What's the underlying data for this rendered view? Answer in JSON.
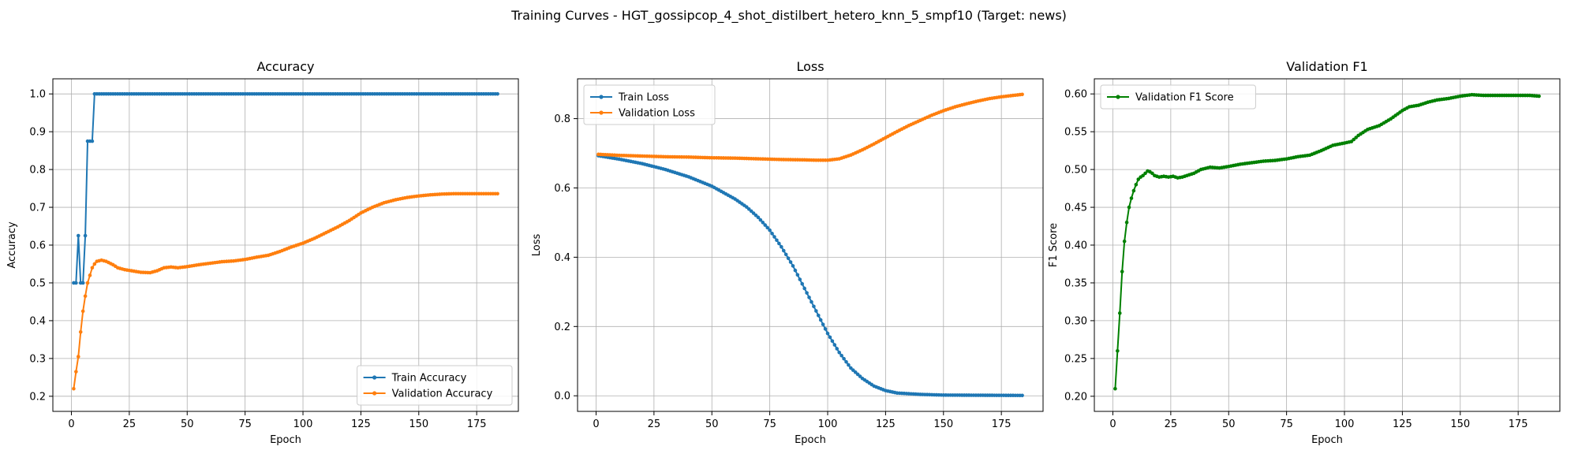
{
  "figure": {
    "suptitle": "Training Curves - HGT_gossipcop_4_shot_distilbert_hetero_knn_5_smpf10 (Target: news)"
  },
  "colors": {
    "blue": "#1f77b4",
    "orange": "#ff7f0e",
    "green": "#008000",
    "grid": "#b0b0b0"
  },
  "chart_data": [
    {
      "type": "line",
      "title": "Accuracy",
      "xlabel": "Epoch",
      "ylabel": "Accuracy",
      "xlim": [
        -8,
        193
      ],
      "ylim": [
        0.16,
        1.04
      ],
      "xticks": [
        0,
        25,
        50,
        75,
        100,
        125,
        150,
        175
      ],
      "yticks": [
        0.2,
        0.3,
        0.4,
        0.5,
        0.6,
        0.7,
        0.8,
        0.9,
        1.0
      ],
      "ytick_labels": [
        "0.2",
        "0.3",
        "0.4",
        "0.5",
        "0.6",
        "0.7",
        "0.8",
        "0.9",
        "1.0"
      ],
      "grid": true,
      "legend_position": "lower-right",
      "epochs": 184,
      "series": [
        {
          "name": "Train Accuracy",
          "color": "blue",
          "points": [
            [
              1,
              0.5
            ],
            [
              2,
              0.5
            ],
            [
              3,
              0.625
            ],
            [
              4,
              0.5
            ],
            [
              5,
              0.5
            ],
            [
              6,
              0.625
            ],
            [
              7,
              0.875
            ],
            [
              8,
              0.875
            ],
            [
              9,
              0.875
            ],
            [
              10,
              1.0
            ],
            [
              184,
              1.0
            ]
          ]
        },
        {
          "name": "Validation Accuracy",
          "color": "orange",
          "points": [
            [
              1,
              0.22
            ],
            [
              2,
              0.265
            ],
            [
              3,
              0.305
            ],
            [
              4,
              0.37
            ],
            [
              5,
              0.425
            ],
            [
              6,
              0.465
            ],
            [
              7,
              0.5
            ],
            [
              8,
              0.52
            ],
            [
              9,
              0.54
            ],
            [
              10,
              0.55
            ],
            [
              11,
              0.557
            ],
            [
              13,
              0.56
            ],
            [
              15,
              0.557
            ],
            [
              18,
              0.548
            ],
            [
              20,
              0.54
            ],
            [
              23,
              0.535
            ],
            [
              26,
              0.532
            ],
            [
              30,
              0.528
            ],
            [
              34,
              0.527
            ],
            [
              37,
              0.532
            ],
            [
              40,
              0.54
            ],
            [
              43,
              0.542
            ],
            [
              46,
              0.54
            ],
            [
              50,
              0.543
            ],
            [
              55,
              0.548
            ],
            [
              60,
              0.552
            ],
            [
              65,
              0.556
            ],
            [
              70,
              0.558
            ],
            [
              75,
              0.562
            ],
            [
              80,
              0.568
            ],
            [
              85,
              0.573
            ],
            [
              90,
              0.583
            ],
            [
              95,
              0.595
            ],
            [
              100,
              0.605
            ],
            [
              105,
              0.618
            ],
            [
              110,
              0.633
            ],
            [
              115,
              0.648
            ],
            [
              120,
              0.665
            ],
            [
              125,
              0.685
            ],
            [
              130,
              0.7
            ],
            [
              135,
              0.712
            ],
            [
              140,
              0.72
            ],
            [
              145,
              0.726
            ],
            [
              150,
              0.73
            ],
            [
              155,
              0.733
            ],
            [
              160,
              0.735
            ],
            [
              165,
              0.736
            ],
            [
              170,
              0.736
            ],
            [
              175,
              0.736
            ],
            [
              184,
              0.736
            ]
          ]
        }
      ]
    },
    {
      "type": "line",
      "title": "Loss",
      "xlabel": "Epoch",
      "ylabel": "Loss",
      "xlim": [
        -8,
        193
      ],
      "ylim": [
        -0.045,
        0.915
      ],
      "xticks": [
        0,
        25,
        50,
        75,
        100,
        125,
        150,
        175
      ],
      "yticks": [
        0.0,
        0.2,
        0.4,
        0.6,
        0.8
      ],
      "ytick_labels": [
        "0.0",
        "0.2",
        "0.4",
        "0.6",
        "0.8"
      ],
      "grid": true,
      "legend_position": "upper-left",
      "epochs": 184,
      "series": [
        {
          "name": "Train Loss",
          "color": "blue",
          "points": [
            [
              1,
              0.693
            ],
            [
              10,
              0.683
            ],
            [
              20,
              0.67
            ],
            [
              30,
              0.653
            ],
            [
              40,
              0.632
            ],
            [
              50,
              0.605
            ],
            [
              60,
              0.568
            ],
            [
              65,
              0.545
            ],
            [
              70,
              0.515
            ],
            [
              75,
              0.478
            ],
            [
              80,
              0.43
            ],
            [
              85,
              0.375
            ],
            [
              90,
              0.31
            ],
            [
              95,
              0.245
            ],
            [
              100,
              0.18
            ],
            [
              105,
              0.125
            ],
            [
              110,
              0.08
            ],
            [
              115,
              0.05
            ],
            [
              120,
              0.028
            ],
            [
              125,
              0.015
            ],
            [
              130,
              0.008
            ],
            [
              140,
              0.004
            ],
            [
              150,
              0.002
            ],
            [
              184,
              0.001
            ]
          ]
        },
        {
          "name": "Validation Loss",
          "color": "orange",
          "points": [
            [
              1,
              0.697
            ],
            [
              10,
              0.694
            ],
            [
              20,
              0.692
            ],
            [
              30,
              0.69
            ],
            [
              40,
              0.689
            ],
            [
              50,
              0.687
            ],
            [
              60,
              0.686
            ],
            [
              70,
              0.684
            ],
            [
              80,
              0.682
            ],
            [
              90,
              0.681
            ],
            [
              95,
              0.68
            ],
            [
              100,
              0.68
            ],
            [
              105,
              0.684
            ],
            [
              110,
              0.695
            ],
            [
              115,
              0.71
            ],
            [
              120,
              0.727
            ],
            [
              125,
              0.745
            ],
            [
              130,
              0.763
            ],
            [
              135,
              0.78
            ],
            [
              140,
              0.795
            ],
            [
              145,
              0.81
            ],
            [
              150,
              0.823
            ],
            [
              155,
              0.834
            ],
            [
              160,
              0.843
            ],
            [
              165,
              0.851
            ],
            [
              170,
              0.858
            ],
            [
              175,
              0.863
            ],
            [
              180,
              0.867
            ],
            [
              184,
              0.87
            ]
          ]
        }
      ]
    },
    {
      "type": "line",
      "title": "Validation F1",
      "xlabel": "Epoch",
      "ylabel": "F1 Score",
      "xlim": [
        -8,
        193
      ],
      "ylim": [
        0.18,
        0.62
      ],
      "xticks": [
        0,
        25,
        50,
        75,
        100,
        125,
        150,
        175
      ],
      "yticks": [
        0.2,
        0.25,
        0.3,
        0.35,
        0.4,
        0.45,
        0.5,
        0.55,
        0.6
      ],
      "ytick_labels": [
        "0.20",
        "0.25",
        "0.30",
        "0.35",
        "0.40",
        "0.45",
        "0.50",
        "0.55",
        "0.60"
      ],
      "grid": true,
      "legend_position": "upper-left",
      "epochs": 184,
      "series": [
        {
          "name": "Validation F1 Score",
          "color": "green",
          "points": [
            [
              1,
              0.21
            ],
            [
              2,
              0.26
            ],
            [
              3,
              0.31
            ],
            [
              4,
              0.365
            ],
            [
              5,
              0.405
            ],
            [
              6,
              0.43
            ],
            [
              7,
              0.45
            ],
            [
              8,
              0.462
            ],
            [
              9,
              0.472
            ],
            [
              10,
              0.48
            ],
            [
              11,
              0.487
            ],
            [
              12,
              0.49
            ],
            [
              13,
              0.492
            ],
            [
              14,
              0.495
            ],
            [
              15,
              0.498
            ],
            [
              16,
              0.497
            ],
            [
              17,
              0.495
            ],
            [
              18,
              0.492
            ],
            [
              20,
              0.49
            ],
            [
              22,
              0.491
            ],
            [
              24,
              0.49
            ],
            [
              26,
              0.491
            ],
            [
              28,
              0.489
            ],
            [
              30,
              0.49
            ],
            [
              32,
              0.492
            ],
            [
              35,
              0.495
            ],
            [
              38,
              0.5
            ],
            [
              42,
              0.503
            ],
            [
              46,
              0.502
            ],
            [
              50,
              0.504
            ],
            [
              55,
              0.507
            ],
            [
              60,
              0.509
            ],
            [
              65,
              0.511
            ],
            [
              70,
              0.512
            ],
            [
              75,
              0.514
            ],
            [
              80,
              0.517
            ],
            [
              85,
              0.519
            ],
            [
              90,
              0.525
            ],
            [
              95,
              0.532
            ],
            [
              100,
              0.535
            ],
            [
              103,
              0.537
            ],
            [
              106,
              0.545
            ],
            [
              110,
              0.553
            ],
            [
              115,
              0.558
            ],
            [
              120,
              0.567
            ],
            [
              125,
              0.578
            ],
            [
              128,
              0.583
            ],
            [
              132,
              0.585
            ],
            [
              136,
              0.589
            ],
            [
              140,
              0.592
            ],
            [
              145,
              0.594
            ],
            [
              150,
              0.597
            ],
            [
              155,
              0.599
            ],
            [
              160,
              0.598
            ],
            [
              165,
              0.598
            ],
            [
              170,
              0.598
            ],
            [
              175,
              0.598
            ],
            [
              180,
              0.598
            ],
            [
              184,
              0.597
            ]
          ]
        }
      ]
    }
  ]
}
